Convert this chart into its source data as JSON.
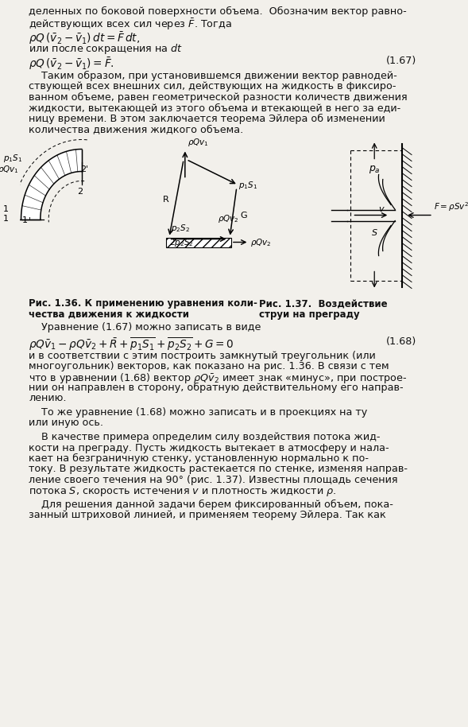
{
  "bg_color": "#f2f0eb",
  "text_color": "#111111",
  "line1": "деленных по боковой поверхности объема.  Обозначим вектор равно-",
  "line2": "действующих всех сил через $\\bar{F}$. Тогда",
  "formula1": "$\\rho Q\\,(\\bar{v}_2 - \\bar{v}_1)\\,dt = \\bar{F}\\,dt,$",
  "line3": "или после сокращения на $dt$",
  "formula2": "$\\rho Q\\,(\\bar{v}_2 - \\bar{v}_1) = \\bar{F}.$",
  "eq_num2": "(1.67)",
  "para1_lines": [
    "    Таким образом, при установившемся движении вектор равнодей-",
    "ствующей всех внешних сил, действующих на жидкость в фиксиро-",
    "ванном объеме, равен геометрической разности количеств движения",
    "жидкости, вытекающей из этого объема и втекающей в него за еди-",
    "ницу времени. В этом заключается теорема Эйлера об изменении",
    "количества движения жидкого объема."
  ],
  "fig136_caption1": "Рис. 1.36. К применению уравнения коли-",
  "fig136_caption2": "чества движения к жидкости",
  "fig137_caption1": "Рис. 1.37.  Воздействие",
  "fig137_caption2": "струи на преграду",
  "eq_intro_text": "    Уравнение (1.67) можно записать в виде",
  "eq_num3": "(1.68)",
  "para2_lines": [
    "и в соответствии с этим построить замкнутый треугольник (или",
    "многоугольник) векторов, как показано на рис. 1.36. В связи с тем",
    "что в уравнении (1.68) вектор $\\rho Q\\bar{v}_2$ имеет знак «минус», при построе-",
    "нии он направлен в сторону, обратную действительному его направ-",
    "лению."
  ],
  "para3_lines": [
    "    То же уравнение (1.68) можно записать и в проекциях на ту",
    "или иную ось."
  ],
  "para4_lines": [
    "    В качестве примера определим силу воздействия потока жид-",
    "кости на преграду. Пусть жидкость вытекает в атмосферу и нала-",
    "кает на безграничную стенку, установленную нормально к по-",
    "току. В результате жидкость растекается по стенке, изменяя направ-",
    "ление своего течения на 90° (рис. 1.37). Известны площадь сечения",
    "потока $S$, скорость истечения $v$ и плотность жидкости $\\rho$."
  ],
  "para5_lines": [
    "    Для решения данной задачи берем фиксированный объем, пока-",
    "занный штриховой линией, и применяем теорему Эйлера. Так как"
  ]
}
